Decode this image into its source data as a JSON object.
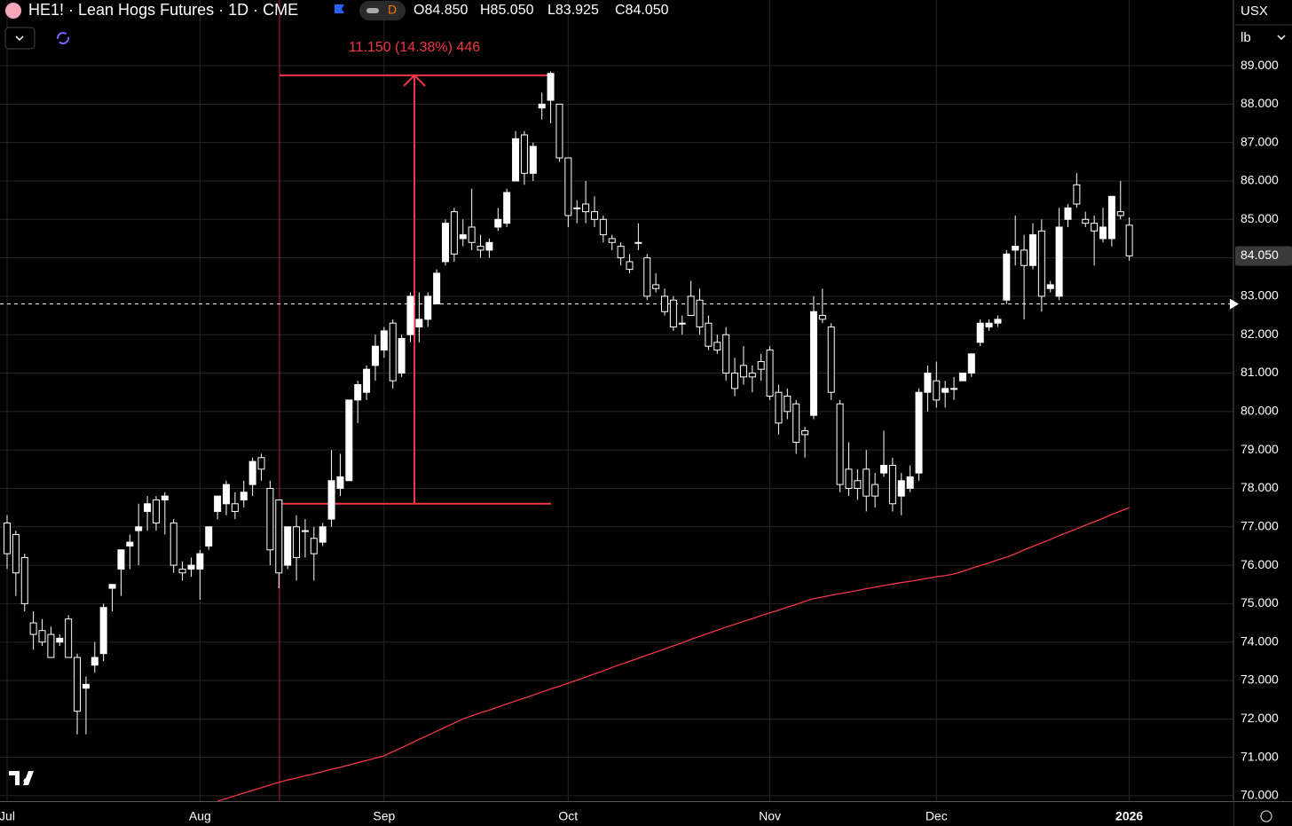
{
  "header": {
    "symbol": "HE1! · Lean Hogs Futures · 1D · CME",
    "open": "O84.850",
    "high": "H85.050",
    "low": "L83.925",
    "close": "C84.050",
    "interval_button": "D",
    "currency": "USX",
    "unit": "lb"
  },
  "chart_data": {
    "type": "candlestick",
    "categories": [
      "Jul",
      null,
      null,
      null,
      null,
      null,
      null,
      null,
      null,
      null,
      null,
      null,
      null,
      null,
      null,
      null,
      null,
      null,
      null,
      null,
      null,
      null,
      "Aug",
      null,
      null,
      null,
      null,
      null,
      null,
      null,
      null,
      null,
      null,
      null,
      null,
      null,
      null,
      null,
      null,
      null,
      null,
      null,
      null,
      "Sep",
      null,
      null,
      null,
      null,
      null,
      null,
      null,
      null,
      null,
      null,
      null,
      null,
      null,
      null,
      null,
      null,
      null,
      null,
      null,
      null,
      "Oct",
      null,
      null,
      null,
      null,
      null,
      null,
      null,
      null,
      null,
      null,
      null,
      null,
      null,
      null,
      null,
      null,
      null,
      null,
      null,
      null,
      null,
      null,
      "Nov",
      null,
      null,
      null,
      null,
      null,
      null,
      null,
      null,
      null,
      null,
      null,
      null,
      null,
      null,
      null,
      null,
      null,
      null,
      "Dec",
      null,
      null,
      null,
      null,
      null,
      null,
      null,
      null,
      null,
      null,
      null,
      null,
      null,
      null,
      null,
      null,
      null,
      null,
      null,
      null,
      null,
      "2026"
    ],
    "open": [
      77.1,
      76.8,
      76.2,
      74.5,
      74.3,
      74.2,
      74.0,
      74.6,
      73.6,
      72.8,
      73.4,
      73.7,
      75.4,
      75.9,
      76.5,
      76.9,
      77.4,
      77.7,
      77.7,
      77.1,
      75.9,
      75.9,
      75.9,
      76.5,
      77.4,
      77.6,
      77.6,
      77.7,
      78.1,
      78.8,
      78.0,
      77.7,
      76.0,
      77.0,
      76.9,
      76.7,
      76.6,
      77.2,
      78.0,
      78.2,
      80.3,
      80.5,
      81.2,
      81.6,
      82.3,
      81.0,
      82.0,
      82.2,
      82.4,
      82.8,
      83.9,
      85.2,
      84.5,
      84.8,
      84.3,
      84.2,
      84.8,
      84.9,
      86.0,
      87.2,
      86.2,
      87.9,
      88.1,
      88.0,
      86.6,
      85.3,
      85.4,
      85.2,
      85.0,
      84.5,
      84.3,
      83.9,
      84.4,
      84.0,
      83.3,
      83.0,
      82.9,
      82.3,
      83.0,
      82.9,
      82.3,
      81.8,
      82.0,
      81.0,
      81.2,
      81.0,
      81.3,
      81.6,
      80.5,
      80.4,
      80.2,
      79.5,
      79.9,
      82.5,
      82.2,
      80.2,
      78.5,
      78.2,
      78.5,
      78.1,
      78.4,
      78.6,
      77.8,
      78.0,
      78.4,
      80.5,
      80.8,
      80.5,
      80.6,
      80.8,
      81.0,
      81.8,
      82.2,
      82.3,
      82.9,
      84.2,
      84.2,
      83.8,
      84.7,
      83.2,
      83.0,
      85.0,
      85.9,
      85.0,
      84.9,
      84.5,
      84.5,
      85.2,
      84.85
    ],
    "high": [
      77.3,
      76.9,
      76.3,
      74.8,
      74.6,
      74.4,
      74.2,
      74.7,
      73.7,
      73.1,
      74.0,
      75.0,
      75.5,
      76.4,
      76.8,
      77.6,
      77.8,
      77.8,
      77.9,
      77.2,
      76.1,
      76.2,
      76.4,
      77.0,
      77.8,
      78.2,
      77.9,
      78.2,
      78.8,
      78.9,
      78.2,
      77.7,
      77.0,
      77.3,
      77.2,
      77.0,
      77.1,
      79.0,
      78.9,
      80.3,
      80.8,
      81.2,
      82.0,
      82.2,
      82.4,
      82.0,
      83.1,
      83.1,
      83.1,
      83.7,
      85.0,
      85.3,
      85.0,
      85.8,
      84.6,
      84.5,
      85.3,
      85.8,
      87.3,
      87.3,
      87.0,
      88.3,
      88.85,
      88.0,
      86.6,
      85.5,
      86.0,
      85.6,
      85.1,
      84.6,
      84.4,
      84.1,
      84.9,
      84.1,
      83.6,
      83.2,
      83.0,
      82.5,
      83.4,
      83.2,
      82.5,
      82.0,
      82.2,
      81.4,
      81.7,
      81.2,
      81.5,
      81.7,
      80.7,
      80.6,
      80.3,
      79.6,
      83.0,
      83.2,
      82.3,
      80.3,
      79.2,
      78.5,
      79.0,
      78.4,
      79.5,
      78.8,
      78.4,
      78.6,
      80.6,
      81.2,
      81.3,
      80.8,
      80.9,
      81.0,
      81.5,
      82.4,
      82.4,
      82.5,
      84.2,
      85.1,
      84.6,
      84.9,
      85.0,
      83.4,
      85.3,
      85.4,
      86.2,
      85.2,
      85.1,
      85.3,
      85.6,
      86.0,
      85.05
    ],
    "low": [
      75.9,
      75.2,
      74.8,
      73.8,
      73.9,
      73.6,
      73.9,
      73.6,
      71.6,
      71.6,
      73.2,
      73.5,
      74.8,
      75.2,
      75.9,
      76.0,
      76.9,
      76.9,
      76.8,
      75.8,
      75.6,
      75.7,
      75.1,
      76.4,
      77.2,
      77.3,
      77.2,
      77.5,
      77.8,
      78.2,
      76.0,
      75.4,
      75.9,
      75.6,
      76.2,
      75.6,
      76.5,
      77.0,
      77.8,
      78.2,
      79.7,
      80.3,
      80.8,
      81.4,
      80.6,
      80.9,
      81.8,
      81.8,
      82.2,
      82.8,
      83.8,
      83.9,
      84.3,
      84.2,
      84.0,
      84.0,
      84.7,
      84.8,
      86.0,
      85.9,
      86.0,
      87.6,
      87.5,
      86.5,
      84.8,
      84.9,
      84.9,
      84.8,
      84.4,
      84.2,
      83.8,
      83.6,
      84.2,
      82.9,
      83.1,
      82.5,
      82.1,
      82.0,
      82.5,
      82.0,
      81.6,
      81.5,
      80.8,
      80.4,
      80.7,
      80.5,
      80.8,
      80.3,
      79.4,
      79.8,
      78.9,
      78.8,
      79.8,
      82.3,
      80.3,
      77.9,
      77.8,
      77.7,
      77.4,
      77.5,
      78.3,
      77.4,
      77.3,
      77.9,
      78.2,
      80.0,
      80.1,
      80.1,
      80.3,
      80.8,
      80.9,
      81.7,
      82.1,
      82.2,
      82.8,
      83.8,
      82.4,
      83.7,
      82.6,
      83.1,
      82.9,
      84.8,
      85.3,
      84.8,
      83.8,
      84.4,
      84.3,
      85.0,
      83.925
    ],
    "close": [
      76.3,
      75.8,
      75.0,
      74.2,
      74.0,
      73.6,
      74.1,
      73.6,
      72.2,
      72.9,
      73.6,
      74.9,
      75.5,
      76.4,
      76.6,
      77.0,
      77.6,
      77.1,
      77.8,
      76.0,
      75.8,
      76.0,
      76.3,
      77.0,
      77.8,
      78.1,
      77.4,
      77.9,
      78.7,
      78.5,
      76.4,
      75.8,
      77.0,
      76.2,
      76.9,
      76.3,
      77.0,
      78.2,
      78.3,
      80.3,
      80.7,
      81.1,
      81.7,
      82.1,
      80.8,
      81.9,
      83.0,
      82.4,
      83.0,
      83.6,
      84.9,
      84.1,
      84.6,
      84.4,
      84.2,
      84.4,
      85.0,
      85.7,
      87.1,
      86.2,
      86.9,
      88.0,
      88.8,
      86.6,
      85.1,
      85.3,
      85.2,
      85.0,
      84.6,
      84.4,
      84.0,
      83.7,
      84.4,
      83.0,
      83.2,
      82.6,
      82.2,
      82.3,
      82.5,
      82.2,
      81.7,
      81.6,
      81.0,
      80.6,
      80.9,
      80.9,
      81.1,
      80.4,
      79.7,
      80.0,
      79.2,
      79.4,
      82.6,
      82.4,
      80.5,
      78.1,
      78.0,
      78.0,
      77.8,
      77.8,
      78.6,
      77.6,
      78.2,
      78.3,
      80.5,
      81.0,
      80.3,
      80.6,
      80.6,
      81.0,
      81.5,
      82.3,
      82.3,
      82.4,
      84.1,
      84.3,
      83.8,
      84.6,
      83.0,
      83.3,
      84.8,
      85.3,
      85.4,
      84.9,
      84.7,
      84.8,
      85.6,
      85.1,
      84.05
    ],
    "overlay": {
      "color": "#f23645",
      "values": [
        null,
        null,
        null,
        null,
        null,
        null,
        null,
        null,
        null,
        null,
        null,
        null,
        null,
        null,
        null,
        null,
        null,
        null,
        null,
        null,
        null,
        null,
        null,
        null,
        69.86,
        69.93,
        70.0,
        70.07,
        70.14,
        70.21,
        70.28,
        70.35,
        70.41,
        70.46,
        70.52,
        70.57,
        70.63,
        70.69,
        70.74,
        70.8,
        70.86,
        70.92,
        70.98,
        71.04,
        71.15,
        71.25,
        71.36,
        71.47,
        71.57,
        71.68,
        71.79,
        71.89,
        72.0,
        72.08,
        72.16,
        72.23,
        72.31,
        72.39,
        72.47,
        72.54,
        72.62,
        72.7,
        72.78,
        72.85,
        72.93,
        73.01,
        73.09,
        73.17,
        73.25,
        73.34,
        73.42,
        73.5,
        73.58,
        73.66,
        73.74,
        73.82,
        73.9,
        73.98,
        74.07,
        74.15,
        74.23,
        74.31,
        74.39,
        74.46,
        74.54,
        74.61,
        74.69,
        74.76,
        74.83,
        74.91,
        74.98,
        75.06,
        75.13,
        75.17,
        75.22,
        75.26,
        75.3,
        75.34,
        75.39,
        75.43,
        75.47,
        75.51,
        75.55,
        75.58,
        75.62,
        75.66,
        75.7,
        75.73,
        75.77,
        75.84,
        75.92,
        75.99,
        76.06,
        76.14,
        76.21,
        76.3,
        76.4,
        76.49,
        76.58,
        76.67,
        76.77,
        76.86,
        76.95,
        77.04,
        77.13,
        77.22,
        77.32,
        77.41,
        77.5
      ]
    },
    "hline": 82.8,
    "measure": {
      "label": "11.150 (14.38%) 446",
      "low": 77.6,
      "high": 88.75,
      "color": "#f23645"
    },
    "last_price": {
      "value": 84.05,
      "label": "84.050"
    },
    "ylim": [
      69.86,
      90.71
    ],
    "yticks": [
      {
        "value": 70,
        "label": "70.000"
      },
      {
        "value": 71,
        "label": "71.000"
      },
      {
        "value": 72,
        "label": "72.000"
      },
      {
        "value": 73,
        "label": "73.000"
      },
      {
        "value": 74,
        "label": "74.000"
      },
      {
        "value": 75,
        "label": "75.000"
      },
      {
        "value": 76,
        "label": "76.000"
      },
      {
        "value": 77,
        "label": "77.000"
      },
      {
        "value": 78,
        "label": "78.000"
      },
      {
        "value": 79,
        "label": "79.000"
      },
      {
        "value": 80,
        "label": "80.000"
      },
      {
        "value": 81,
        "label": "81.000"
      },
      {
        "value": 82,
        "label": "82.000"
      },
      {
        "value": 83,
        "label": "83.000"
      },
      {
        "value": 84,
        "label": "84.000"
      },
      {
        "value": 85,
        "label": "85.000"
      },
      {
        "value": 86,
        "label": "86.000"
      },
      {
        "value": 87,
        "label": "87.000"
      },
      {
        "value": 88,
        "label": "88.000"
      },
      {
        "value": 89,
        "label": "89.000"
      }
    ],
    "grid": true,
    "up_color": "#ffffff",
    "down_color": "#ffffff"
  }
}
